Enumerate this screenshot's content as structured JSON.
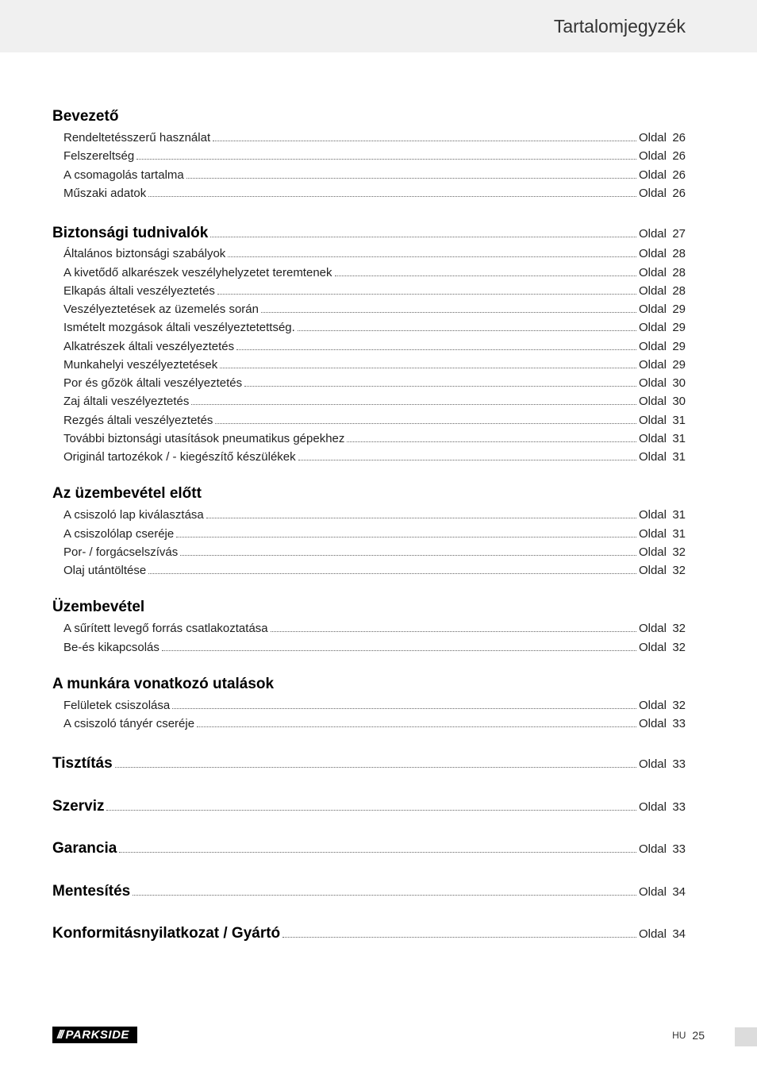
{
  "header": {
    "title": "Tartalomjegyzék"
  },
  "page_label": "Oldal",
  "sections": [
    {
      "heading": "Bevezető",
      "heading_inline": false,
      "items": [
        {
          "label": "Rendeltetésszerű használat",
          "page": 26
        },
        {
          "label": "Felszereltség",
          "page": 26
        },
        {
          "label": "A csomagolás tartalma",
          "page": 26
        },
        {
          "label": "Műszaki adatok",
          "page": 26
        }
      ]
    },
    {
      "heading": "Biztonsági tudnivalók",
      "heading_inline": true,
      "heading_page": 27,
      "items": [
        {
          "label": "Általános biztonsági szabályok",
          "page": 28
        },
        {
          "label": "A kivetődő alkarészek veszélyhelyzetet teremtenek",
          "page": 28
        },
        {
          "label": "Elkapás általi veszélyeztetés",
          "page": 28
        },
        {
          "label": "Veszélyeztetések az üzemelés során",
          "page": 29
        },
        {
          "label": "Ismételt mozgások általi veszélyeztetettség.",
          "page": 29
        },
        {
          "label": "Alkatrészek általi veszélyeztetés",
          "page": 29
        },
        {
          "label": "Munkahelyi veszélyeztetések",
          "page": 29
        },
        {
          "label": "Por és gőzök általi veszélyeztetés",
          "page": 30
        },
        {
          "label": "Zaj általi veszélyeztetés",
          "page": 30
        },
        {
          "label": "Rezgés általi veszélyeztetés",
          "page": 31
        },
        {
          "label": "További biztonsági utasítások pneumatikus gépekhez",
          "page": 31
        },
        {
          "label": "Originál tartozékok / - kiegészítő készülékek",
          "page": 31
        }
      ]
    },
    {
      "heading": "Az üzembevétel előtt",
      "heading_inline": false,
      "items": [
        {
          "label": "A csiszoló lap kiválasztása",
          "page": 31
        },
        {
          "label": "A csiszolólap cseréje",
          "page": 31
        },
        {
          "label": "Por- / forgácselszívás",
          "page": 32
        },
        {
          "label": "Olaj utántöltése",
          "page": 32
        }
      ]
    },
    {
      "heading": "Üzembevétel",
      "heading_inline": false,
      "items": [
        {
          "label": "A sűrített levegő forrás csatlakoztatása",
          "page": 32
        },
        {
          "label": "Be-és kikapcsolás",
          "page": 32
        }
      ]
    },
    {
      "heading": "A munkára vonatkozó utalások",
      "heading_inline": false,
      "items": [
        {
          "label": "Felületek csiszolása",
          "page": 32
        },
        {
          "label": "A csiszoló tányér cseréje",
          "page": 33
        }
      ]
    },
    {
      "heading": "Tisztítás",
      "heading_inline": true,
      "heading_page": 33,
      "items": []
    },
    {
      "heading": "Szerviz",
      "heading_inline": true,
      "heading_page": 33,
      "items": []
    },
    {
      "heading": "Garancia",
      "heading_inline": true,
      "heading_page": 33,
      "items": []
    },
    {
      "heading": "Mentesítés",
      "heading_inline": true,
      "heading_page": 34,
      "items": []
    },
    {
      "heading": "Konformitásnyilatkozat / Gyártó",
      "heading_inline": true,
      "heading_page": 34,
      "items": []
    }
  ],
  "footer": {
    "brand": "PARKSIDE",
    "lang": "HU",
    "page": 25
  },
  "colors": {
    "header_bg": "#f0f0f0",
    "text": "#222222",
    "dots": "#666666",
    "brand_bg": "#000000",
    "brand_fg": "#ffffff",
    "edge": "#dcdcdc"
  }
}
